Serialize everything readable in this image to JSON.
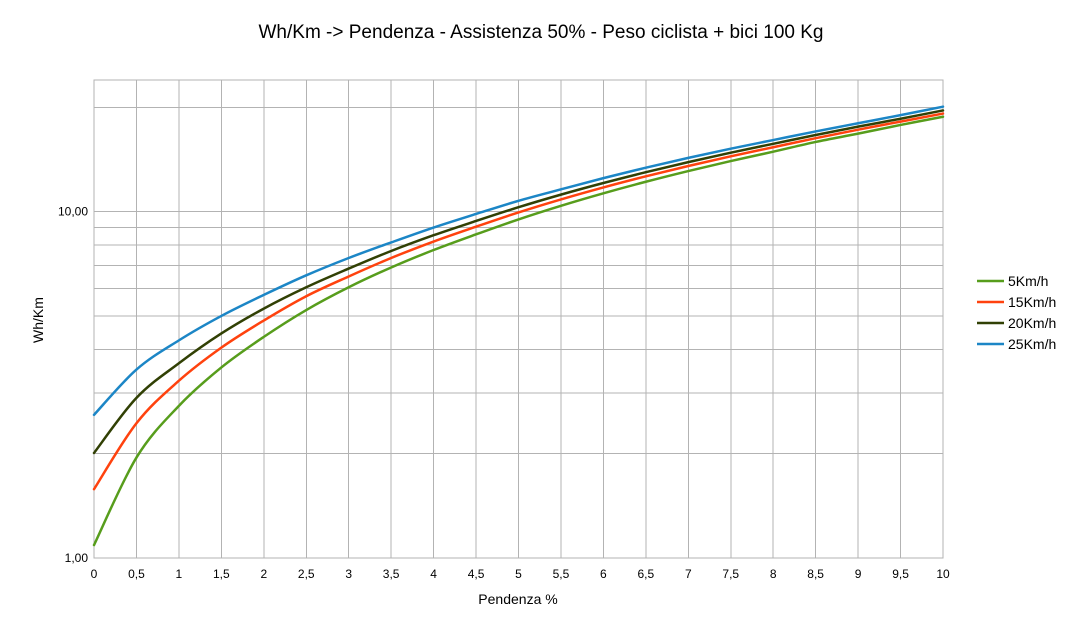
{
  "chart_data": {
    "type": "line",
    "title": "Wh/Km -> Pendenza - Assistenza 50% - Peso ciclista + bici 100 Kg",
    "xlabel": "Pendenza %",
    "ylabel": "Wh/Km",
    "xlim": [
      0,
      10
    ],
    "ylim": [
      1,
      24
    ],
    "yscale": "log",
    "grid": true,
    "legend": "right",
    "x_ticks": [
      "0",
      "0,5",
      "1",
      "1,5",
      "2",
      "2,5",
      "3",
      "3,5",
      "4",
      "4,5",
      "5",
      "5,5",
      "6",
      "6,5",
      "7",
      "7,5",
      "8",
      "8,5",
      "9",
      "9,5",
      "10"
    ],
    "y_tick_labels": [
      "1,00",
      "10,00"
    ],
    "x": [
      0,
      0.5,
      1,
      1.5,
      2,
      2.5,
      3,
      3.5,
      4,
      4.5,
      5,
      5.5,
      6,
      6.5,
      7,
      7.5,
      8,
      8.5,
      9,
      9.5,
      10
    ],
    "series": [
      {
        "name": "5Km/h",
        "color": "#579d1c",
        "values": [
          1.09,
          1.95,
          2.75,
          3.55,
          4.35,
          5.2,
          6.05,
          6.9,
          7.75,
          8.6,
          9.5,
          10.4,
          11.3,
          12.2,
          13.1,
          14.0,
          14.9,
          15.9,
          16.8,
          17.8,
          18.8
        ]
      },
      {
        "name": "15Km/h",
        "color": "#ff420e",
        "values": [
          1.58,
          2.45,
          3.25,
          4.05,
          4.85,
          5.7,
          6.5,
          7.35,
          8.2,
          9.05,
          9.95,
          10.85,
          11.75,
          12.65,
          13.55,
          14.45,
          15.35,
          16.3,
          17.25,
          18.2,
          19.2
        ]
      },
      {
        "name": "20Km/h",
        "color": "#314004",
        "values": [
          2.01,
          2.9,
          3.65,
          4.45,
          5.25,
          6.05,
          6.85,
          7.7,
          8.55,
          9.4,
          10.3,
          11.2,
          12.1,
          13.0,
          13.9,
          14.8,
          15.7,
          16.65,
          17.6,
          18.55,
          19.6
        ]
      },
      {
        "name": "25Km/h",
        "color": "#1c86c6",
        "values": [
          2.59,
          3.5,
          4.25,
          5.0,
          5.75,
          6.55,
          7.35,
          8.15,
          9.0,
          9.85,
          10.75,
          11.6,
          12.5,
          13.4,
          14.3,
          15.2,
          16.1,
          17.05,
          18.0,
          19.0,
          20.1
        ]
      }
    ]
  }
}
